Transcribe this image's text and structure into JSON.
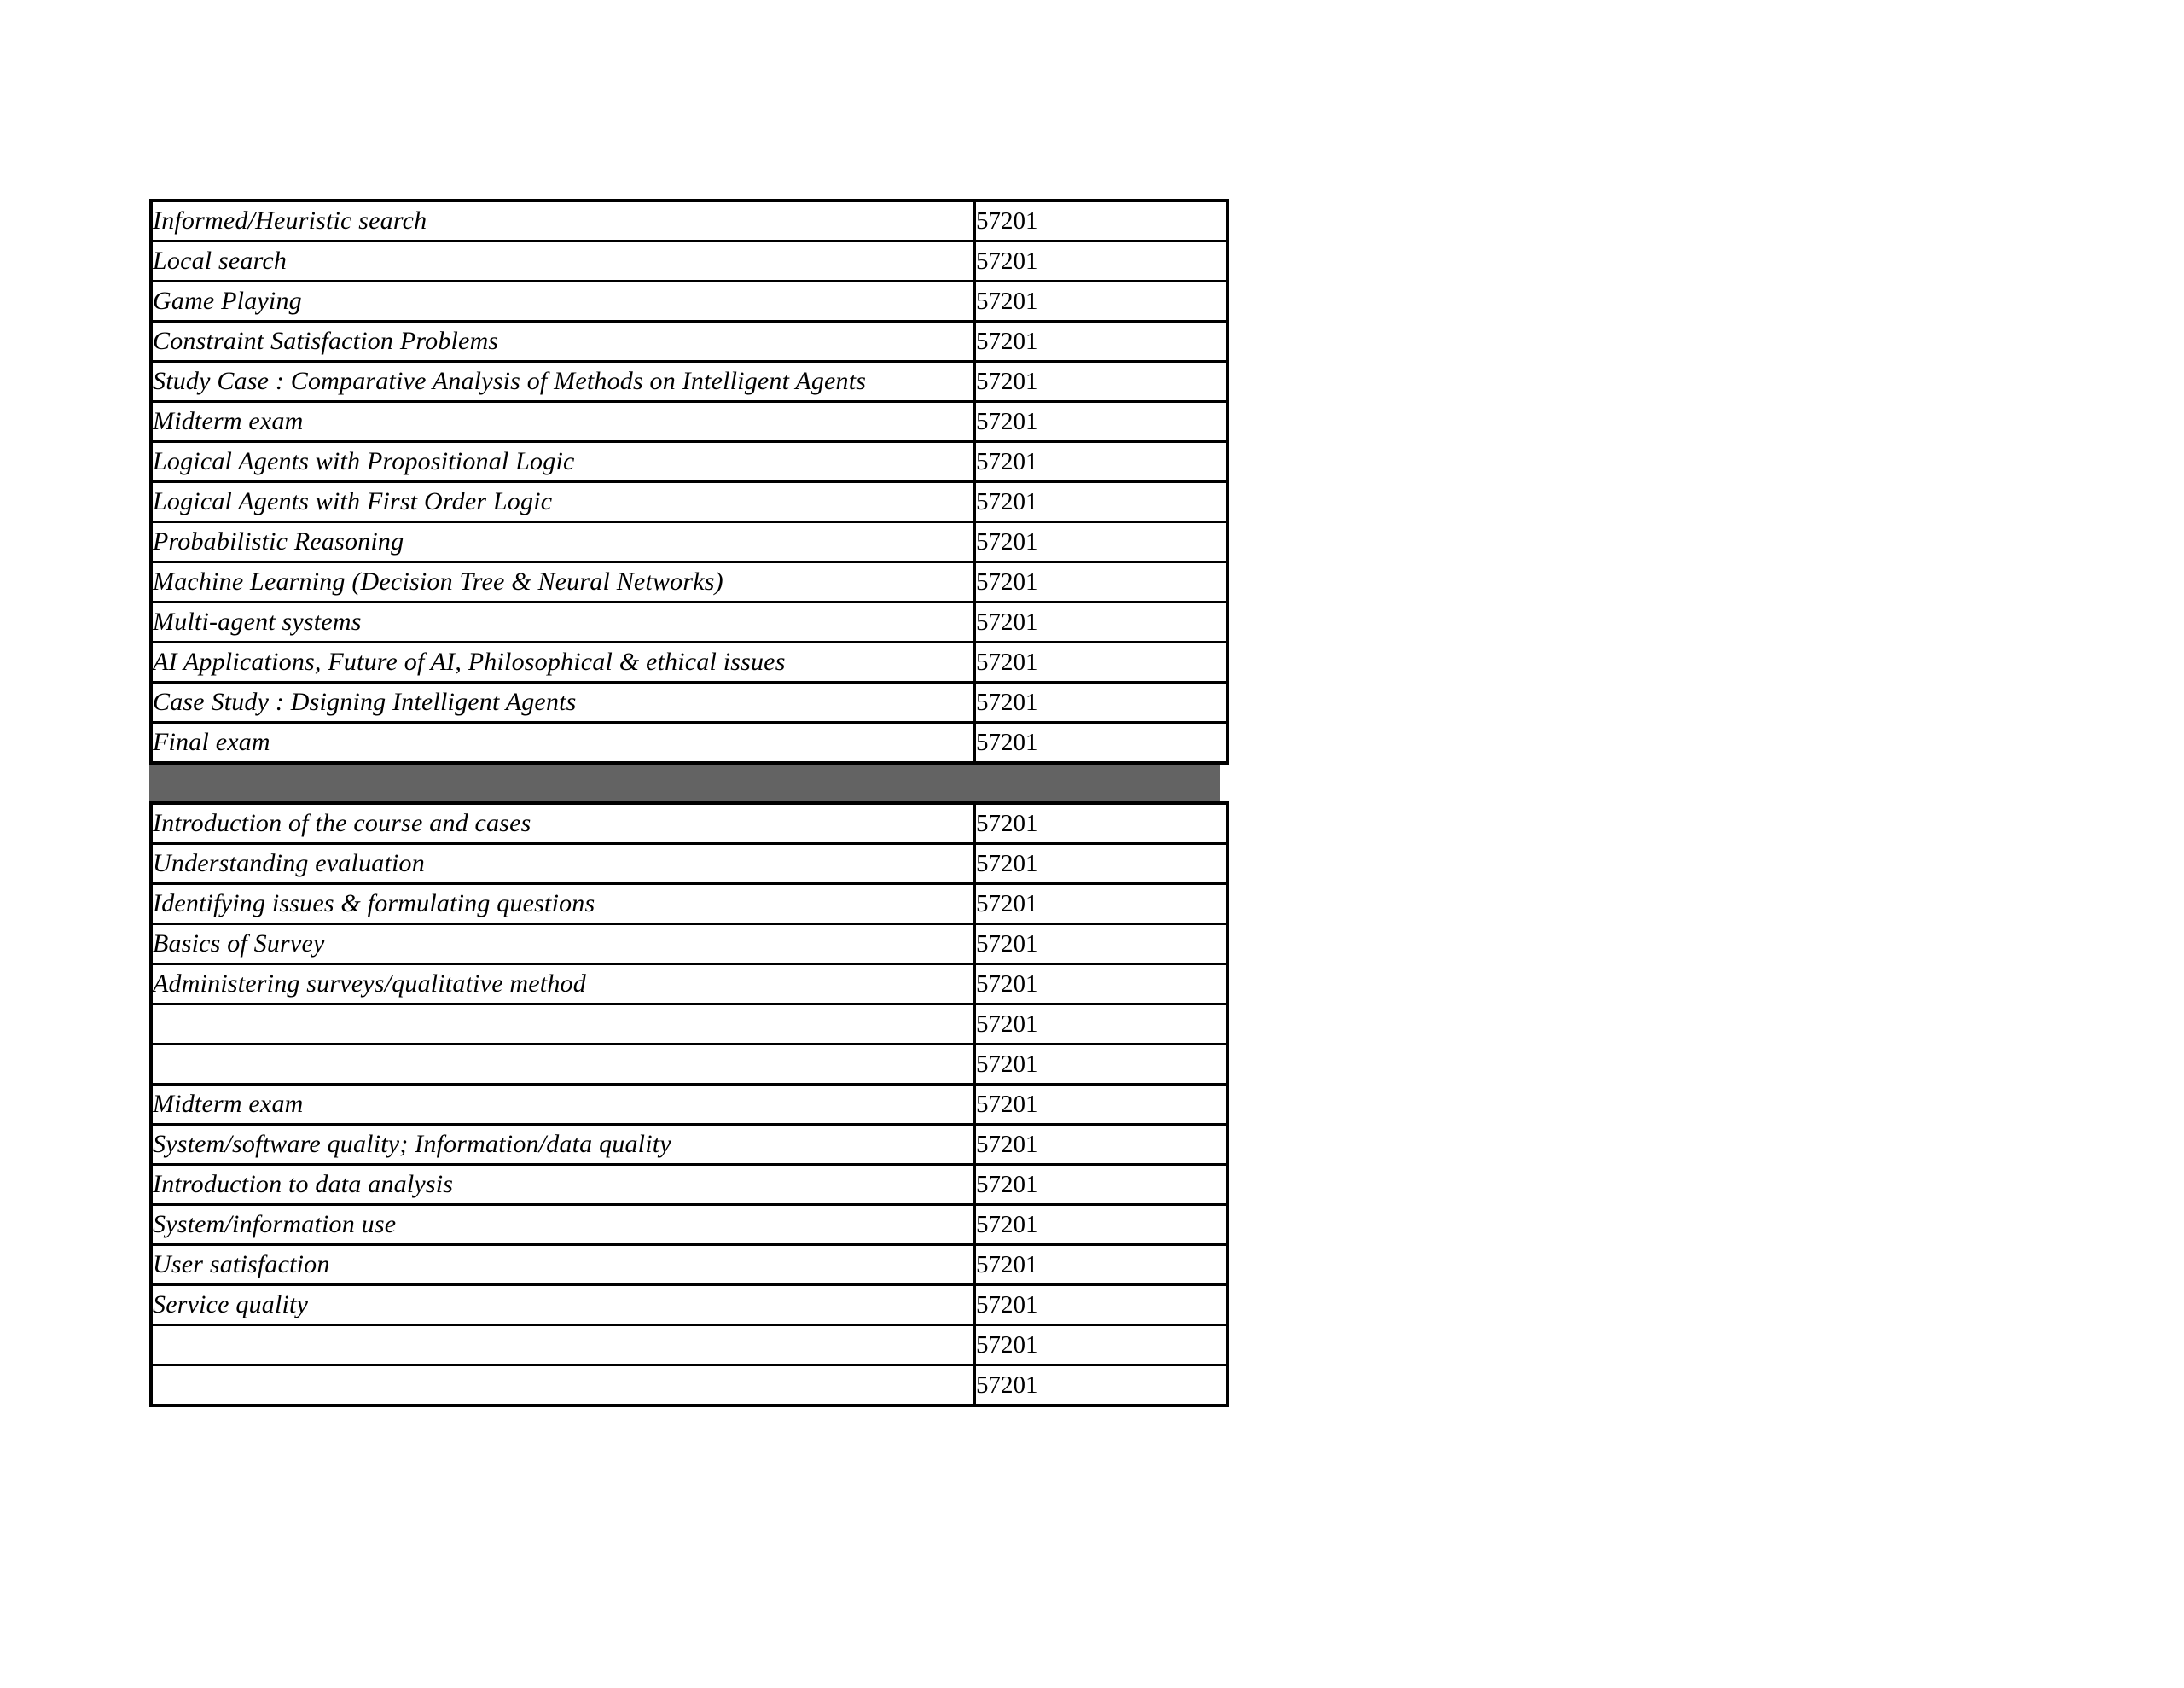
{
  "page": {
    "background_color": "#ffffff",
    "border_color": "#000000"
  },
  "separator": {
    "color": "#636363"
  },
  "table": {
    "sections": [
      {
        "rows": [
          {
            "label": "Informed/Heuristic search",
            "value": "57201"
          },
          {
            "label": "Local search",
            "value": "57201"
          },
          {
            "label": "Game Playing",
            "value": "57201"
          },
          {
            "label": "Constraint Satisfaction Problems",
            "value": "57201"
          },
          {
            "label": "Study Case : Comparative Analysis of Methods on Intelligent Agents",
            "value": "57201"
          },
          {
            "label": "Midterm exam",
            "value": "57201"
          },
          {
            "label": "Logical Agents with Propositional Logic",
            "value": "57201"
          },
          {
            "label": "Logical Agents with First Order Logic",
            "value": "57201"
          },
          {
            "label": "Probabilistic Reasoning",
            "value": "57201"
          },
          {
            "label": "Machine Learning (Decision Tree & Neural Networks)",
            "value": "57201"
          },
          {
            "label": "Multi-agent systems",
            "value": "57201"
          },
          {
            "label": "AI Applications, Future of AI, Philosophical & ethical issues",
            "value": "57201"
          },
          {
            "label": "Case Study : Dsigning Intelligent Agents",
            "value": "57201"
          },
          {
            "label": "Final exam",
            "value": "57201"
          }
        ]
      },
      {
        "rows": [
          {
            "label": "Introduction of the course and cases",
            "value": "57201"
          },
          {
            "label": "Understanding evaluation",
            "value": "57201"
          },
          {
            "label": "Identifying issues & formulating questions",
            "value": "57201"
          },
          {
            "label": "Basics of Survey",
            "value": "57201"
          },
          {
            "label": "Administering surveys/qualitative method",
            "value": "57201"
          },
          {
            "label": "",
            "value": "57201"
          },
          {
            "label": "",
            "value": "57201"
          },
          {
            "label": "Midterm exam",
            "value": "57201"
          },
          {
            "label": "System/software quality; Information/data quality",
            "value": "57201"
          },
          {
            "label": "Introduction to data analysis",
            "value": "57201"
          },
          {
            "label": "System/information use",
            "value": "57201"
          },
          {
            "label": "User satisfaction",
            "value": "57201"
          },
          {
            "label": "Service quality",
            "value": "57201"
          },
          {
            "label": "",
            "value": "57201"
          },
          {
            "label": "",
            "value": "57201"
          }
        ]
      }
    ]
  }
}
